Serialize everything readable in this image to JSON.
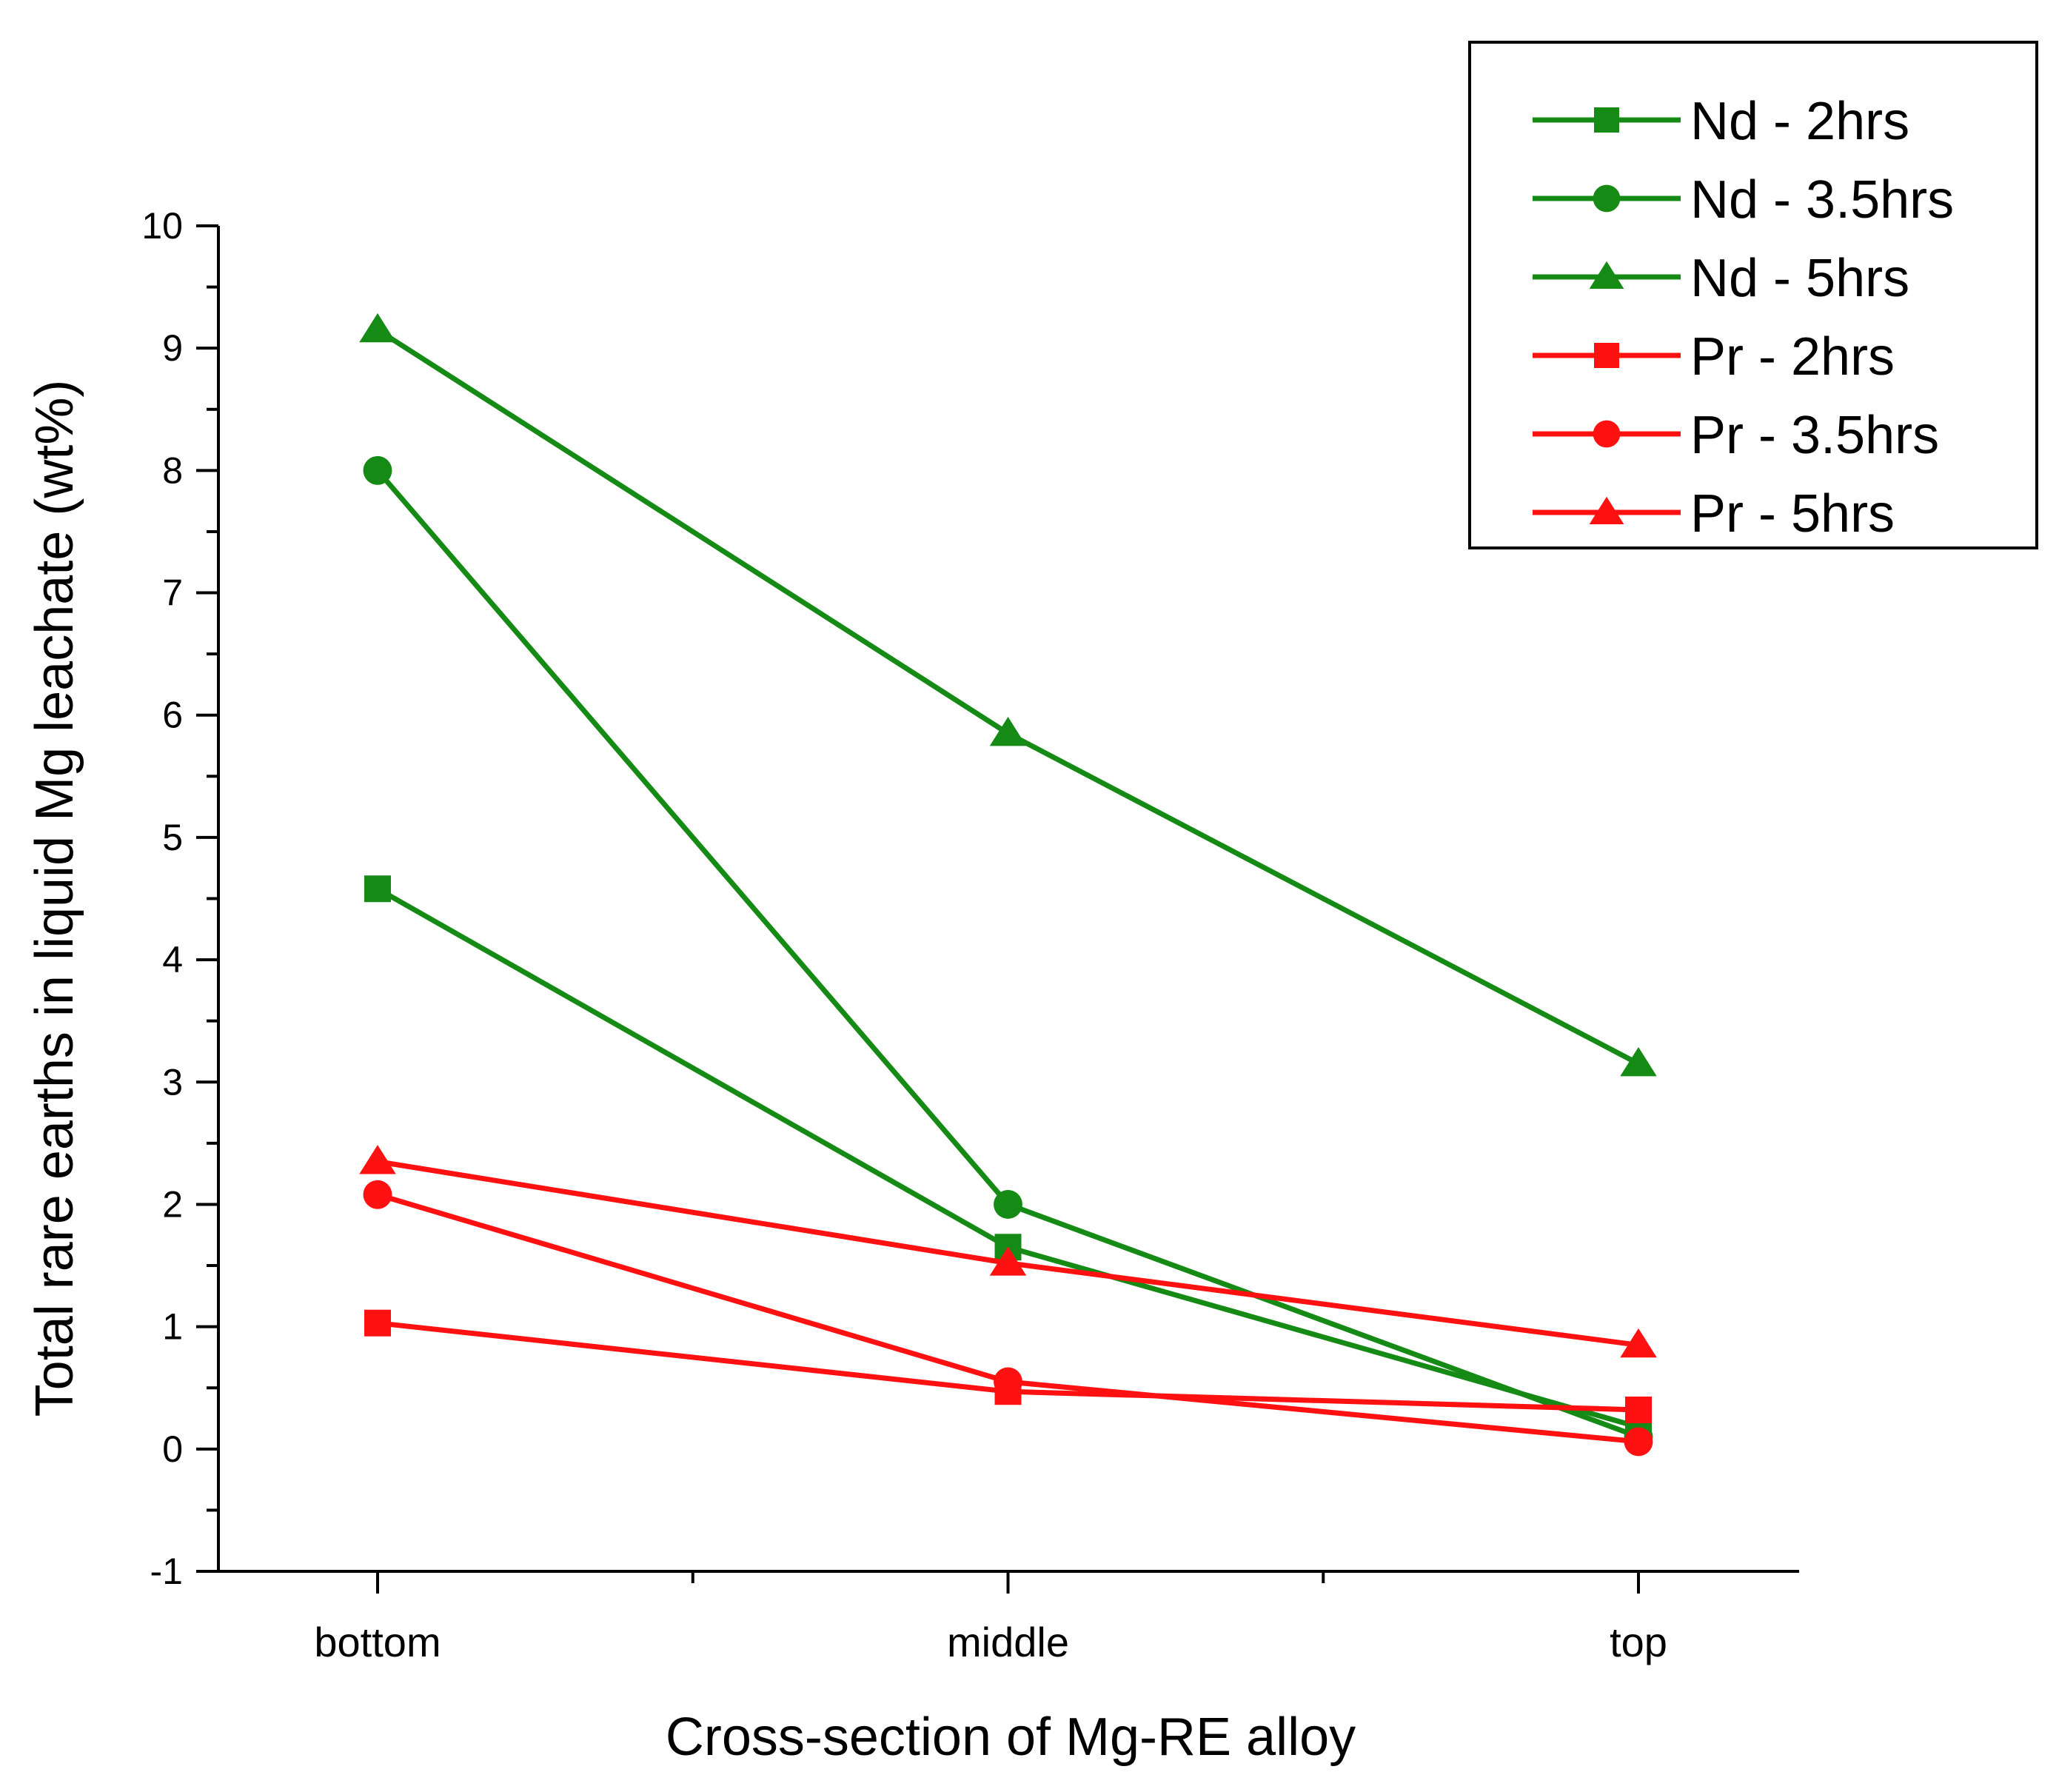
{
  "chart_data": {
    "type": "line",
    "title": "",
    "xlabel": "Cross-section of Mg-RE alloy",
    "ylabel": "Total rare earths in liquid Mg leachate (wt%)",
    "categories": [
      "bottom",
      "middle",
      "top"
    ],
    "ylim": [
      -1,
      10
    ],
    "yticks": [
      -1,
      0,
      1,
      2,
      3,
      4,
      5,
      6,
      7,
      8,
      9,
      10
    ],
    "grid": false,
    "legend_position": "top-right",
    "series": [
      {
        "name": "Nd - 2hrs",
        "color": "#158a15",
        "marker": "square",
        "values": [
          4.58,
          1.65,
          0.18
        ]
      },
      {
        "name": "Nd - 3.5hrs",
        "color": "#158a15",
        "marker": "circle",
        "values": [
          8.0,
          2.0,
          0.1
        ]
      },
      {
        "name": "Nd - 5hrs",
        "color": "#158a15",
        "marker": "triangle",
        "values": [
          9.15,
          5.85,
          3.15
        ]
      },
      {
        "name": "Pr - 2hrs",
        "color": "#ff1111",
        "marker": "square",
        "values": [
          1.03,
          0.47,
          0.32
        ]
      },
      {
        "name": "Pr - 3.5hrs",
        "color": "#ff1111",
        "marker": "circle",
        "values": [
          2.08,
          0.55,
          0.06
        ]
      },
      {
        "name": "Pr - 5hrs",
        "color": "#ff1111",
        "marker": "triangle",
        "values": [
          2.35,
          1.52,
          0.85
        ]
      }
    ]
  }
}
